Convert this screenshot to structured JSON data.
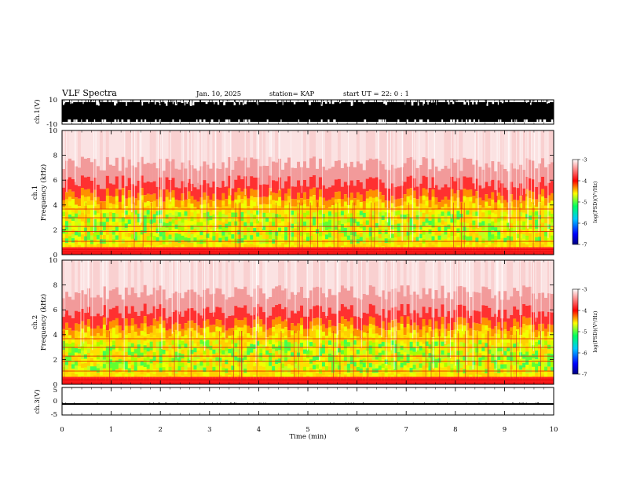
{
  "header": {
    "title": "VLF Spectra",
    "date": "Jan. 10, 2025",
    "station": "station= KAP",
    "start": "start UT =  22: 0  : 1"
  },
  "chart_data": [
    {
      "type": "line",
      "panel": "ch1-waveform",
      "ylabel": "ch.1(V)",
      "ylim": [
        -10,
        10
      ],
      "ytick_labels": [
        "10",
        "-10"
      ],
      "xlim": [
        0,
        10
      ],
      "note_values": "dense oscillating waveform spanning nearly the full range"
    },
    {
      "type": "heatmap",
      "panel": "ch1-spectrogram",
      "ylabel": "ch.1\nFrequency (kHz)",
      "ylim": [
        0,
        10
      ],
      "ytick_labels": [
        "0",
        "2",
        "4",
        "6",
        "8",
        "10"
      ],
      "xlim": [
        0,
        10
      ],
      "colorbar": {
        "label": "log(PSD)(V²/Hz)",
        "range": [
          -7,
          -3
        ],
        "tick_labels": [
          "-3",
          "-4",
          "-5",
          "-6",
          "-7"
        ]
      },
      "bands_kHz": {
        "low_power_band": [
          0.5,
          4.2
        ],
        "high_power_above": 4.2
      }
    },
    {
      "type": "heatmap",
      "panel": "ch2-spectrogram",
      "ylabel": "ch.2\nFrequency (kHz)",
      "ylim": [
        0,
        10
      ],
      "ytick_labels": [
        "0",
        "2",
        "4",
        "6",
        "8",
        "10"
      ],
      "xlim": [
        0,
        10
      ],
      "colorbar": {
        "label": "log(PSD)(V²/Hz)",
        "range": [
          -7,
          -3
        ],
        "tick_labels": [
          "-3",
          "-4",
          "-5",
          "-6",
          "-7"
        ]
      },
      "bands_kHz": {
        "low_power_band": [
          0.5,
          4.3
        ],
        "high_power_above": 4.3
      }
    },
    {
      "type": "line",
      "panel": "ch3-waveform",
      "ylabel": "ch.3(V)",
      "ylim": [
        -5,
        5
      ],
      "ytick_labels": [
        "5",
        "0",
        "-5"
      ],
      "xlim": [
        0,
        10
      ],
      "note_values": "nearly constant level close to -1 V"
    }
  ],
  "x_axis": {
    "label": "Time (min)",
    "tick_labels": [
      "0",
      "1",
      "2",
      "3",
      "4",
      "5",
      "6",
      "7",
      "8",
      "9",
      "10"
    ]
  },
  "colors": {
    "colormap": [
      "#000080",
      "#0000ff",
      "#00c0ff",
      "#00ff80",
      "#80ff00",
      "#ffff00",
      "#ff8000",
      "#ff0000",
      "#ffffff"
    ]
  }
}
